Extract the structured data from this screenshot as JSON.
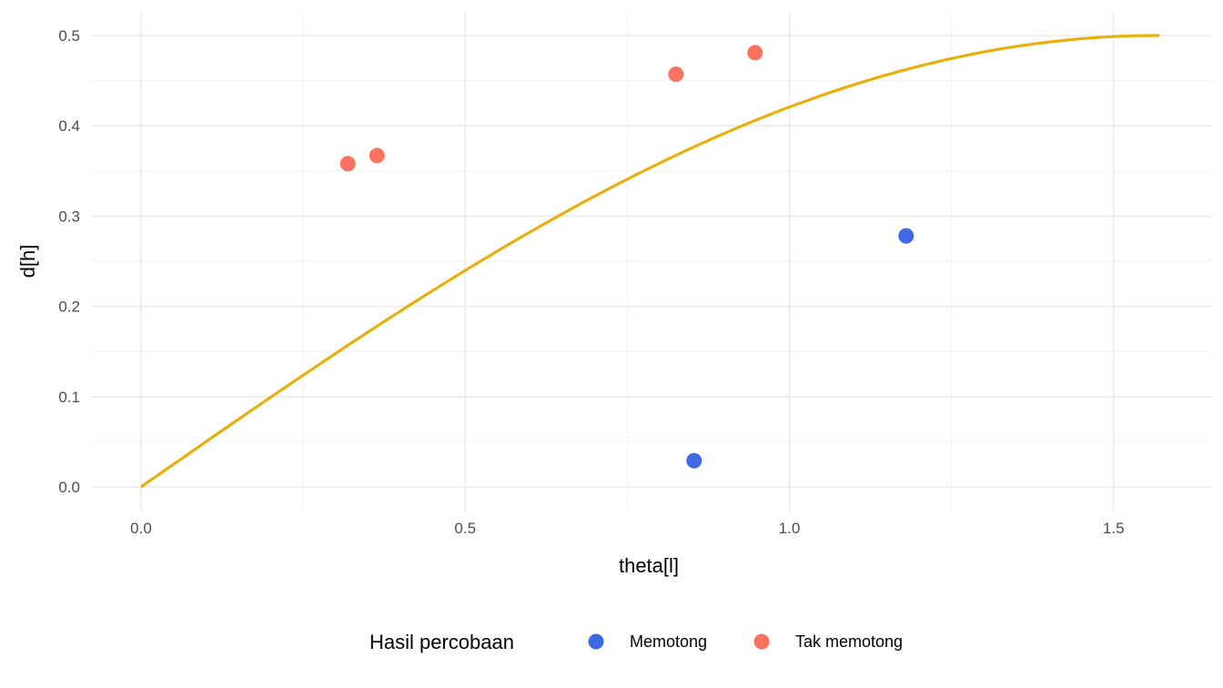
{
  "chart_data": {
    "type": "scatter",
    "title": "",
    "xlabel": "theta[l]",
    "ylabel": "d[h]",
    "xlim": [
      -0.08,
      1.65
    ],
    "ylim": [
      -0.025,
      0.525
    ],
    "x_ticks": [
      "0.0",
      "0.5",
      "1.0",
      "1.5"
    ],
    "x_tick_values": [
      0,
      0.5,
      1.0,
      1.5
    ],
    "y_ticks": [
      "0.0",
      "0.1",
      "0.2",
      "0.3",
      "0.4",
      "0.5"
    ],
    "y_tick_values": [
      0,
      0.1,
      0.2,
      0.3,
      0.4,
      0.5
    ],
    "grid": true,
    "curve": {
      "formula": "0.5*sin(theta)",
      "x_range": [
        0,
        1.5708
      ],
      "color": "#E8B00F"
    },
    "legend": {
      "title": "Hasil percobaan",
      "placement": "bottom",
      "entries": [
        {
          "label": "Memotong",
          "color": "#4169E1"
        },
        {
          "label": "Tak memotong",
          "color": "#FA7360"
        }
      ]
    },
    "series": [
      {
        "name": "Memotong",
        "color": "#4169E1",
        "points": [
          [
            0.853,
            0.029
          ],
          [
            1.18,
            0.278
          ]
        ]
      },
      {
        "name": "Tak memotong",
        "color": "#FA7360",
        "points": [
          [
            0.319,
            0.358
          ],
          [
            0.364,
            0.367
          ],
          [
            0.825,
            0.457
          ],
          [
            0.947,
            0.481
          ]
        ]
      }
    ]
  }
}
